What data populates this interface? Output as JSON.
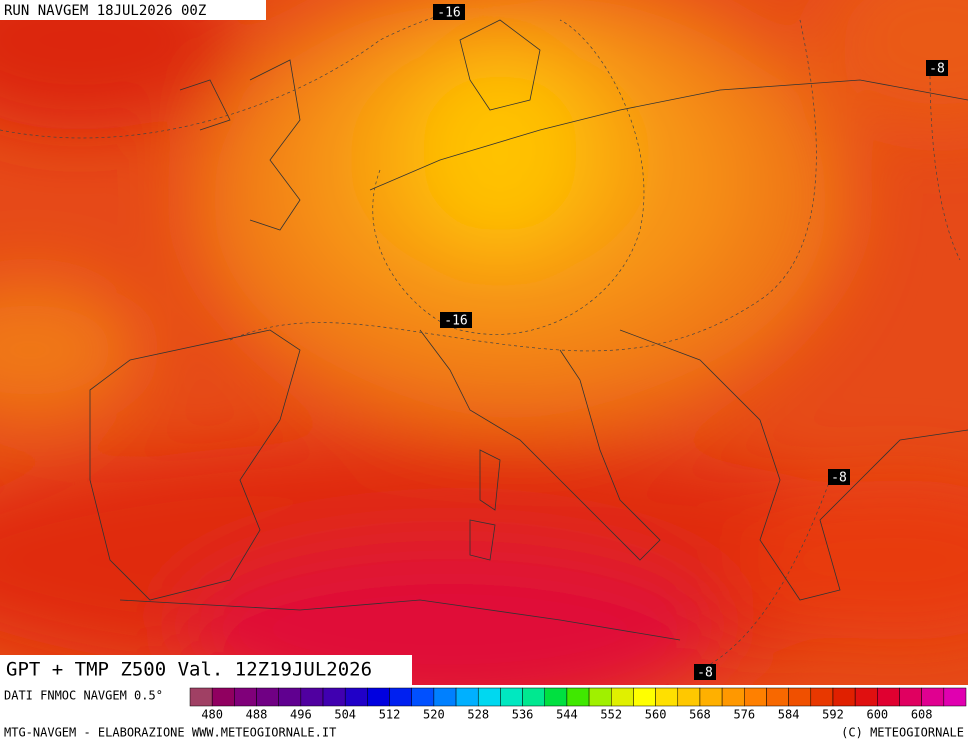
{
  "header": {
    "run": "RUN NAVGEM 18JUL2026 00Z"
  },
  "contour_labels": [
    "-16",
    "-16",
    "-8",
    "-8",
    "-8"
  ],
  "title": "GPT + TMP Z500 Val. 12Z19JUL2026",
  "scale": {
    "caption": "DATI FNMOC NAVGEM 0.5°",
    "ticks": [
      480,
      488,
      496,
      504,
      512,
      520,
      528,
      536,
      544,
      552,
      560,
      568,
      576,
      584,
      592,
      600,
      608
    ],
    "colors": [
      "#a04064",
      "#900060",
      "#80007a",
      "#700084",
      "#600090",
      "#5000a0",
      "#4000b0",
      "#2000c8",
      "#0000e0",
      "#0020f0",
      "#0050ff",
      "#0080ff",
      "#00b0ff",
      "#00d8f0",
      "#00e8c0",
      "#00e890",
      "#00e040",
      "#40e800",
      "#a0f000",
      "#e0f000",
      "#ffff00",
      "#ffe000",
      "#ffc800",
      "#ffb000",
      "#ff9800",
      "#ff8000",
      "#f86800",
      "#f05000",
      "#e83800",
      "#e02000",
      "#e01010",
      "#e00030",
      "#e00060",
      "#e00090",
      "#e000b0"
    ]
  },
  "footer": {
    "left": "MTG-NAVGEM - ELABORAZIONE WWW.METEOGIORNALE.IT",
    "right": "(C) METEOGIORNALE"
  }
}
